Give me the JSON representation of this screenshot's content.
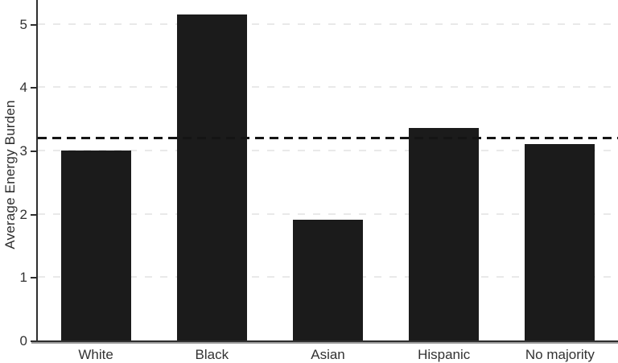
{
  "chart_data": {
    "type": "bar",
    "title": "",
    "xlabel": "",
    "ylabel": "Average Energy Burden",
    "categories": [
      "White",
      "Black",
      "Asian",
      "Hispanic",
      "No majority"
    ],
    "values": [
      3.0,
      5.15,
      1.9,
      3.35,
      3.1
    ],
    "reference_line": {
      "value": 3.2,
      "style": "dashed",
      "color": "#141414"
    },
    "yticks": [
      0,
      1,
      2,
      3,
      4,
      5
    ],
    "ylim": [
      0,
      5.37
    ],
    "grid": "faint dashed horizontal lines at integer ticks",
    "legend_position": "none",
    "bar_color": "#1b1b1b",
    "axis_color": "#2e2e2e",
    "gridline_color": "#e9e9e9",
    "background_color": "#ffffff"
  }
}
